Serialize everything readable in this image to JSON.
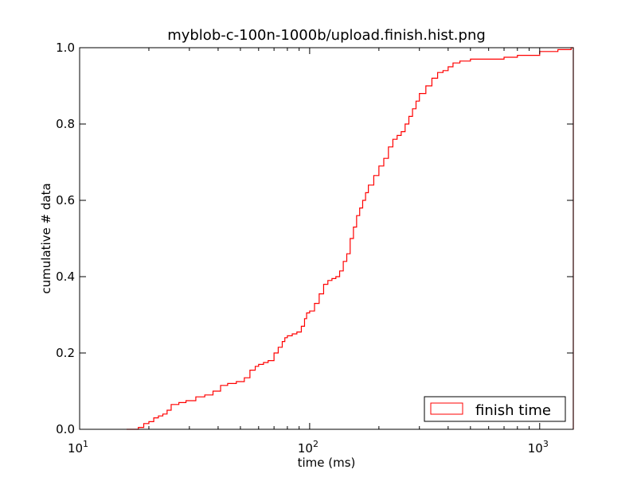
{
  "chart_data": {
    "type": "line",
    "title": "myblob-c-100n-1000b/upload.finish.hist.png",
    "xlabel": "time (ms)",
    "ylabel": "cumulative # data",
    "xscale": "log",
    "xlim": [
      10,
      1400
    ],
    "ylim": [
      0,
      1.0
    ],
    "x_ticks": [
      {
        "value": 10,
        "base": "10",
        "exp": "1"
      },
      {
        "value": 100,
        "base": "10",
        "exp": "2"
      },
      {
        "value": 1000,
        "base": "10",
        "exp": "3"
      }
    ],
    "y_ticks": [
      "0.0",
      "0.2",
      "0.4",
      "0.6",
      "0.8",
      "1.0"
    ],
    "legend": {
      "position": "lower-right",
      "entries": [
        "finish time"
      ]
    },
    "grid": false,
    "series": [
      {
        "name": "finish time",
        "color": "#ff0000",
        "style": "step",
        "x": [
          16,
          18,
          19,
          20,
          21,
          22,
          23,
          24,
          25,
          27,
          29,
          32,
          35,
          38,
          41,
          44,
          48,
          52,
          55,
          58,
          60,
          63,
          66,
          70,
          73,
          76,
          78,
          80,
          84,
          88,
          92,
          95,
          97,
          100,
          105,
          110,
          115,
          120,
          125,
          130,
          135,
          140,
          145,
          150,
          155,
          160,
          165,
          170,
          175,
          180,
          190,
          200,
          210,
          220,
          230,
          240,
          250,
          260,
          270,
          280,
          290,
          300,
          320,
          340,
          360,
          380,
          400,
          420,
          450,
          500,
          600,
          700,
          800,
          1000,
          1200,
          1370,
          1400
        ],
        "y": [
          0.0,
          0.005,
          0.015,
          0.02,
          0.03,
          0.035,
          0.04,
          0.05,
          0.065,
          0.07,
          0.075,
          0.085,
          0.09,
          0.1,
          0.115,
          0.12,
          0.125,
          0.135,
          0.155,
          0.165,
          0.17,
          0.175,
          0.18,
          0.2,
          0.215,
          0.23,
          0.24,
          0.245,
          0.25,
          0.255,
          0.27,
          0.29,
          0.305,
          0.31,
          0.33,
          0.355,
          0.38,
          0.39,
          0.395,
          0.4,
          0.415,
          0.44,
          0.46,
          0.5,
          0.53,
          0.56,
          0.58,
          0.6,
          0.62,
          0.64,
          0.665,
          0.69,
          0.71,
          0.74,
          0.76,
          0.77,
          0.78,
          0.8,
          0.82,
          0.84,
          0.86,
          0.88,
          0.9,
          0.92,
          0.935,
          0.94,
          0.95,
          0.96,
          0.965,
          0.97,
          0.97,
          0.975,
          0.98,
          0.99,
          0.995,
          1.0,
          1.0
        ]
      }
    ]
  }
}
